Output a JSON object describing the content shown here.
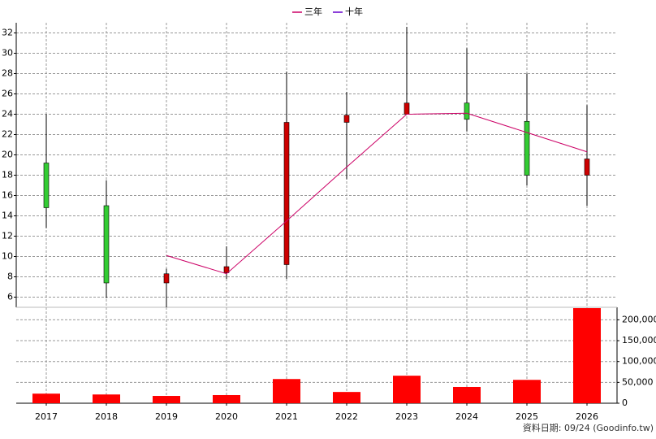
{
  "chart_data": {
    "type": "candlestick",
    "categories": [
      "2017",
      "2018",
      "2019",
      "2020",
      "2021",
      "2022",
      "2023",
      "2024",
      "2025",
      "2026"
    ],
    "open": [
      14.8,
      7.4,
      8.3,
      9.0,
      23.2,
      23.9,
      25.1,
      23.5,
      18.0,
      19.6
    ],
    "high": [
      24.0,
      17.5,
      8.8,
      11.0,
      28.2,
      26.2,
      32.6,
      30.5,
      28.0,
      24.9
    ],
    "low": [
      12.8,
      5.9,
      5.0,
      7.8,
      7.8,
      17.6,
      24.0,
      22.3,
      17.0,
      15.0
    ],
    "close": [
      19.2,
      15.0,
      7.4,
      8.4,
      9.2,
      23.2,
      24.0,
      25.1,
      23.3,
      18.0
    ],
    "up_color": "#33cc33",
    "down_color": "#cc0000",
    "series": [
      {
        "name": "三年",
        "color": "#cc0066",
        "values": [
          null,
          null,
          10.1,
          8.3,
          13.5,
          18.8,
          24.0,
          24.1,
          22.2,
          20.3
        ]
      },
      {
        "name": "十年",
        "color": "#6600cc",
        "values": [
          null,
          null,
          null,
          null,
          null,
          null,
          null,
          null,
          null,
          null
        ]
      }
    ],
    "ylim": [
      5,
      33
    ],
    "yticks": [
      6,
      8,
      10,
      12,
      14,
      16,
      18,
      20,
      22,
      24,
      26,
      28,
      30,
      32
    ],
    "grid": true,
    "volume": {
      "color": "#ff0000",
      "values": [
        23000,
        21000,
        17500,
        19500,
        58000,
        27000,
        66000,
        39000,
        56000,
        228000
      ],
      "ylim": [
        0,
        230000
      ],
      "yticks": [
        0,
        {
          "value": 50000,
          "label": "50,000"
        },
        {
          "value": 100000,
          "label": "100,000"
        },
        {
          "value": 150000,
          "label": "150,000"
        },
        {
          "value": 200000,
          "label": "200,000"
        }
      ]
    },
    "footnote": "資料日期: 09/24 (Goodinfo.tw)"
  }
}
